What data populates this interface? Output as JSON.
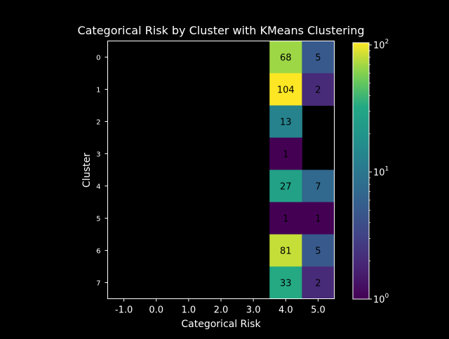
{
  "chart_data": {
    "type": "heatmap",
    "title": "Categorical Risk by Cluster with KMeans Clustering",
    "xlabel": "Categorical Risk",
    "ylabel": "Cluster",
    "x_categories": [
      "-1.0",
      "0.0",
      "1.0",
      "2.0",
      "3.0",
      "4.0",
      "5.0"
    ],
    "y_categories": [
      "0",
      "1",
      "2",
      "3",
      "4",
      "5",
      "6",
      "7"
    ],
    "values": [
      [
        null,
        null,
        null,
        null,
        null,
        68,
        5
      ],
      [
        null,
        null,
        null,
        null,
        null,
        104,
        2
      ],
      [
        null,
        null,
        null,
        null,
        null,
        13,
        null
      ],
      [
        null,
        null,
        null,
        null,
        null,
        1,
        null
      ],
      [
        null,
        null,
        null,
        null,
        null,
        27,
        7
      ],
      [
        null,
        null,
        null,
        null,
        null,
        1,
        1
      ],
      [
        null,
        null,
        null,
        null,
        null,
        81,
        5
      ],
      [
        null,
        null,
        null,
        null,
        null,
        33,
        2
      ]
    ],
    "colorbar": {
      "scale": "log",
      "range": [
        1,
        104
      ],
      "colormap": "viridis",
      "tick_values": [
        1,
        10,
        100
      ],
      "tick_labels": [
        "10",
        "10",
        "10"
      ],
      "tick_exponents": [
        "0",
        "1",
        "2"
      ]
    },
    "background": "#000000",
    "foreground": "#ffffff"
  }
}
